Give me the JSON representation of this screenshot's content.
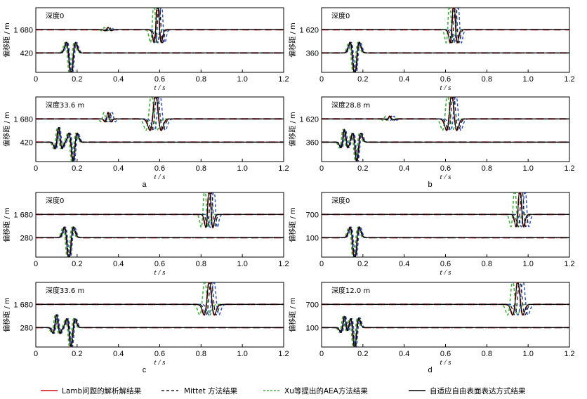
{
  "colors": {
    "lamb": "#d9484c",
    "mittet": "#1a1a1a",
    "xu": "#3fae3a",
    "adaptive": "#000000",
    "blue_overshoot": "#2a52c8"
  },
  "legend": {
    "lamb": "Lamb问题的解析解结果",
    "mittet": "Mittet 方法结果",
    "xu": "Xu等提出的AEA方法结果",
    "adaptive": "自适应自由表面表达方式结果"
  },
  "chart_data": [
    {
      "type": "line",
      "id": "a-top",
      "group": "a",
      "title": "深度0",
      "ylabel": "偏移距 / m",
      "xlabel": "t / s",
      "xticks": [
        "0",
        "0.2",
        "0.4",
        "0.6",
        "0.8",
        "1.0",
        "1.2"
      ],
      "xlim": [
        0,
        1.2
      ],
      "traces": [
        {
          "tick_label": "1 680",
          "offset_m": 1680,
          "pulses": [
            [
              0.35,
              0.12,
              0.012
            ],
            [
              0.59,
              1.6,
              0.014
            ]
          ],
          "spread": 0.018
        },
        {
          "tick_label": "420",
          "offset_m": 420,
          "pulses": [
            [
              0.17,
              -1.3,
              0.018
            ]
          ],
          "spread": 0.006
        }
      ]
    },
    {
      "type": "line",
      "id": "a-bottom",
      "group": "a",
      "title": "深度33.6 m",
      "ylabel": "偏移距 / m",
      "xlabel": "t / s",
      "xticks": [
        "0",
        "0.2",
        "0.4",
        "0.6",
        "0.8",
        "1.0",
        "1.2"
      ],
      "xlim": [
        0,
        1.2
      ],
      "letter": "a",
      "traces": [
        {
          "tick_label": "1 680",
          "offset_m": 1680,
          "pulses": [
            [
              0.35,
              0.35,
              0.012
            ],
            [
              0.58,
              1.4,
              0.022
            ]
          ],
          "spread": 0.02
        },
        {
          "tick_label": "420",
          "offset_m": 420,
          "pulses": [
            [
              0.11,
              0.8,
              0.014
            ],
            [
              0.18,
              -1.1,
              0.016
            ]
          ],
          "spread": 0.006
        }
      ]
    },
    {
      "type": "line",
      "id": "b-top",
      "group": "b",
      "title": "深度0",
      "ylabel": "偏移距 / m",
      "xlabel": "t / s",
      "xticks": [
        "0",
        "0.2",
        "0.4",
        "0.6",
        "0.8",
        "1.0",
        "1.2"
      ],
      "xlim": [
        0,
        1.2
      ],
      "traces": [
        {
          "tick_label": "1 620",
          "offset_m": 1620,
          "pulses": [
            [
              0.64,
              1.6,
              0.014
            ]
          ],
          "spread": 0.02
        },
        {
          "tick_label": "360",
          "offset_m": 360,
          "pulses": [
            [
              0.16,
              -1.3,
              0.018
            ]
          ],
          "spread": 0.006
        }
      ]
    },
    {
      "type": "line",
      "id": "b-bottom",
      "group": "b",
      "title": "深度28.8 m",
      "ylabel": "偏移距 / m",
      "xlabel": "t / s",
      "xticks": [
        "0",
        "0.2",
        "0.4",
        "0.6",
        "0.8",
        "1.0",
        "1.2"
      ],
      "xlim": [
        0,
        1.2
      ],
      "letter": "b",
      "traces": [
        {
          "tick_label": "1 620",
          "offset_m": 1620,
          "pulses": [
            [
              0.33,
              0.15,
              0.012
            ],
            [
              0.63,
              1.4,
              0.02
            ]
          ],
          "spread": 0.02
        },
        {
          "tick_label": "360",
          "offset_m": 360,
          "pulses": [
            [
              0.11,
              0.7,
              0.014
            ],
            [
              0.17,
              -1.1,
              0.016
            ]
          ],
          "spread": 0.006
        }
      ]
    },
    {
      "type": "line",
      "id": "c-top",
      "group": "c",
      "title": "深度0",
      "ylabel": "偏移距 / m",
      "xlabel": "t / s",
      "xticks": [
        "0",
        "0.2",
        "0.4",
        "0.6",
        "0.8",
        "1.0",
        "1.2"
      ],
      "xlim": [
        0,
        1.2
      ],
      "traces": [
        {
          "tick_label": "1 680",
          "offset_m": 1680,
          "pulses": [
            [
              0.84,
              1.6,
              0.014
            ]
          ],
          "spread": 0.022
        },
        {
          "tick_label": "280",
          "offset_m": 280,
          "pulses": [
            [
              0.16,
              -1.3,
              0.018
            ]
          ],
          "spread": 0.006
        }
      ]
    },
    {
      "type": "line",
      "id": "c-bottom",
      "group": "c",
      "title": "深度33.6 m",
      "ylabel": "偏移距 / m",
      "xlabel": "t / s",
      "xticks": [
        "0",
        "0.2",
        "0.4",
        "0.6",
        "0.8",
        "1.0",
        "1.2"
      ],
      "xlim": [
        0,
        1.2
      ],
      "letter": "c",
      "traces": [
        {
          "tick_label": "1 680",
          "offset_m": 1680,
          "pulses": [
            [
              0.84,
              1.3,
              0.02
            ]
          ],
          "spread": 0.022
        },
        {
          "tick_label": "280",
          "offset_m": 280,
          "pulses": [
            [
              0.1,
              0.7,
              0.014
            ],
            [
              0.17,
              -1.1,
              0.016
            ]
          ],
          "spread": 0.006
        }
      ]
    },
    {
      "type": "line",
      "id": "d-top",
      "group": "d",
      "title": "深度0",
      "ylabel": "偏移距 / m",
      "xlabel": "t / s",
      "xticks": [
        "0",
        "0.2",
        "0.4",
        "0.6",
        "0.8",
        "1.0",
        "1.2"
      ],
      "xlim": [
        0,
        1.2
      ],
      "traces": [
        {
          "tick_label": "700",
          "offset_m": 700,
          "pulses": [
            [
              0.96,
              1.5,
              0.015
            ]
          ],
          "spread": 0.025
        },
        {
          "tick_label": "100",
          "offset_m": 100,
          "pulses": [
            [
              0.16,
              -1.3,
              0.018
            ]
          ],
          "spread": 0.006
        }
      ]
    },
    {
      "type": "line",
      "id": "d-bottom",
      "group": "d",
      "title": "深度12.0 m",
      "ylabel": "偏移距 / m",
      "xlabel": "t / s",
      "xticks": [
        "0",
        "0.2",
        "0.4",
        "0.6",
        "0.8",
        "1.0",
        "1.2"
      ],
      "xlim": [
        0,
        1.2
      ],
      "letter": "d",
      "traces": [
        {
          "tick_label": "700",
          "offset_m": 700,
          "pulses": [
            [
              0.95,
              1.3,
              0.02
            ]
          ],
          "spread": 0.025
        },
        {
          "tick_label": "100",
          "offset_m": 100,
          "pulses": [
            [
              0.11,
              0.6,
              0.014
            ],
            [
              0.16,
              -1.2,
              0.016
            ]
          ],
          "spread": 0.006
        }
      ]
    }
  ]
}
